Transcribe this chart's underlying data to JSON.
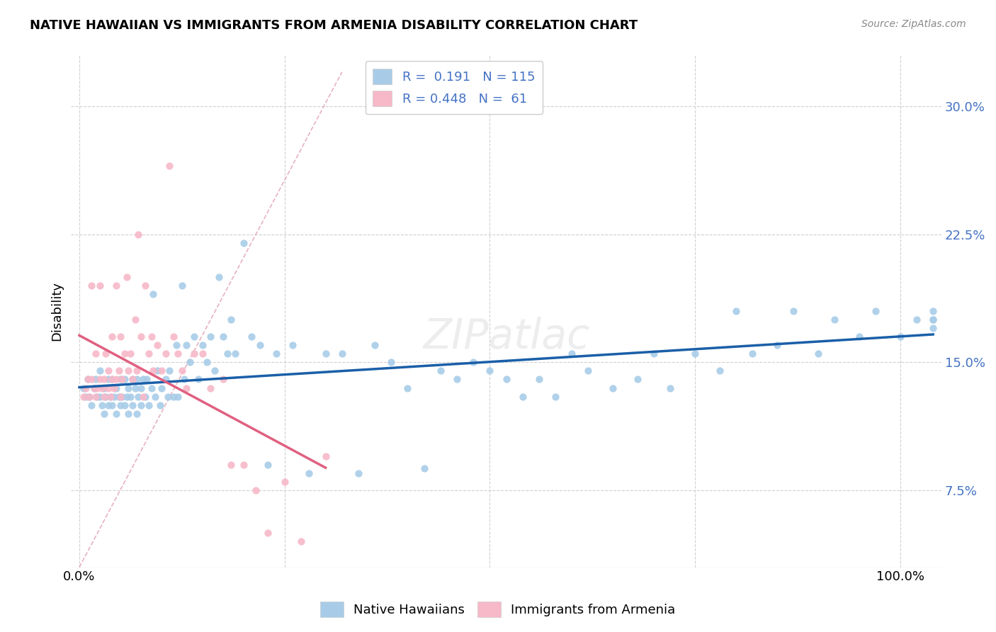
{
  "title": "NATIVE HAWAIIAN VS IMMIGRANTS FROM ARMENIA DISABILITY CORRELATION CHART",
  "source": "Source: ZipAtlas.com",
  "ylabel": "Disability",
  "yticks": [
    "7.5%",
    "15.0%",
    "22.5%",
    "30.0%"
  ],
  "ytick_vals": [
    0.075,
    0.15,
    0.225,
    0.3
  ],
  "ylim": [
    0.03,
    0.33
  ],
  "xlim": [
    -0.01,
    1.05
  ],
  "blue_color": "#a8cce8",
  "pink_color": "#f7b8c8",
  "trendline_blue": "#1a5fa8",
  "trendline_pink": "#e06080",
  "trendline_diag_color": "#e0a0b0",
  "background": "#ffffff",
  "native_hawaiians_x": [
    0.005,
    0.008,
    0.01,
    0.012,
    0.015,
    0.018,
    0.02,
    0.022,
    0.025,
    0.025,
    0.028,
    0.03,
    0.03,
    0.032,
    0.035,
    0.035,
    0.038,
    0.04,
    0.04,
    0.042,
    0.045,
    0.045,
    0.048,
    0.05,
    0.05,
    0.052,
    0.055,
    0.055,
    0.058,
    0.06,
    0.06,
    0.062,
    0.065,
    0.065,
    0.068,
    0.07,
    0.07,
    0.072,
    0.075,
    0.075,
    0.078,
    0.08,
    0.082,
    0.085,
    0.088,
    0.09,
    0.092,
    0.095,
    0.098,
    0.1,
    0.105,
    0.108,
    0.11,
    0.115,
    0.118,
    0.12,
    0.125,
    0.128,
    0.13,
    0.135,
    0.14,
    0.145,
    0.15,
    0.155,
    0.16,
    0.165,
    0.17,
    0.175,
    0.18,
    0.185,
    0.19,
    0.2,
    0.21,
    0.22,
    0.23,
    0.24,
    0.26,
    0.28,
    0.3,
    0.32,
    0.34,
    0.36,
    0.38,
    0.4,
    0.42,
    0.44,
    0.46,
    0.48,
    0.5,
    0.52,
    0.54,
    0.56,
    0.58,
    0.6,
    0.62,
    0.65,
    0.68,
    0.7,
    0.72,
    0.75,
    0.78,
    0.8,
    0.82,
    0.85,
    0.87,
    0.9,
    0.92,
    0.95,
    0.97,
    1.0,
    1.02,
    1.04,
    1.04,
    1.04,
    1.04
  ],
  "native_hawaiians_y": [
    0.135,
    0.13,
    0.14,
    0.13,
    0.125,
    0.135,
    0.14,
    0.13,
    0.145,
    0.13,
    0.125,
    0.135,
    0.12,
    0.13,
    0.14,
    0.125,
    0.13,
    0.14,
    0.125,
    0.13,
    0.135,
    0.12,
    0.13,
    0.14,
    0.125,
    0.13,
    0.14,
    0.125,
    0.13,
    0.12,
    0.135,
    0.13,
    0.14,
    0.125,
    0.135,
    0.12,
    0.14,
    0.13,
    0.135,
    0.125,
    0.14,
    0.13,
    0.14,
    0.125,
    0.135,
    0.19,
    0.13,
    0.145,
    0.125,
    0.135,
    0.14,
    0.13,
    0.145,
    0.13,
    0.16,
    0.13,
    0.195,
    0.14,
    0.16,
    0.15,
    0.165,
    0.14,
    0.16,
    0.15,
    0.165,
    0.145,
    0.2,
    0.165,
    0.155,
    0.175,
    0.155,
    0.22,
    0.165,
    0.16,
    0.09,
    0.155,
    0.16,
    0.085,
    0.155,
    0.155,
    0.085,
    0.16,
    0.15,
    0.135,
    0.088,
    0.145,
    0.14,
    0.15,
    0.145,
    0.14,
    0.13,
    0.14,
    0.13,
    0.155,
    0.145,
    0.135,
    0.14,
    0.155,
    0.135,
    0.155,
    0.145,
    0.18,
    0.155,
    0.16,
    0.18,
    0.155,
    0.175,
    0.165,
    0.18,
    0.165,
    0.175,
    0.18,
    0.175,
    0.17,
    0.175
  ],
  "armenia_x": [
    0.005,
    0.008,
    0.01,
    0.012,
    0.015,
    0.015,
    0.018,
    0.02,
    0.02,
    0.022,
    0.025,
    0.025,
    0.028,
    0.03,
    0.03,
    0.032,
    0.035,
    0.035,
    0.038,
    0.04,
    0.04,
    0.042,
    0.045,
    0.045,
    0.048,
    0.05,
    0.05,
    0.052,
    0.055,
    0.058,
    0.06,
    0.062,
    0.065,
    0.068,
    0.07,
    0.072,
    0.075,
    0.078,
    0.08,
    0.085,
    0.088,
    0.09,
    0.095,
    0.1,
    0.105,
    0.11,
    0.115,
    0.12,
    0.125,
    0.13,
    0.14,
    0.15,
    0.16,
    0.175,
    0.185,
    0.2,
    0.215,
    0.23,
    0.25,
    0.27,
    0.3
  ],
  "armenia_y": [
    0.13,
    0.135,
    0.14,
    0.13,
    0.14,
    0.195,
    0.135,
    0.13,
    0.155,
    0.135,
    0.14,
    0.195,
    0.135,
    0.13,
    0.14,
    0.155,
    0.135,
    0.145,
    0.13,
    0.14,
    0.165,
    0.135,
    0.14,
    0.195,
    0.145,
    0.13,
    0.165,
    0.14,
    0.155,
    0.2,
    0.145,
    0.155,
    0.14,
    0.175,
    0.145,
    0.225,
    0.165,
    0.13,
    0.195,
    0.155,
    0.165,
    0.145,
    0.16,
    0.145,
    0.155,
    0.265,
    0.165,
    0.155,
    0.145,
    0.135,
    0.155,
    0.155,
    0.135,
    0.14,
    0.09,
    0.09,
    0.075,
    0.05,
    0.08,
    0.045,
    0.095
  ]
}
